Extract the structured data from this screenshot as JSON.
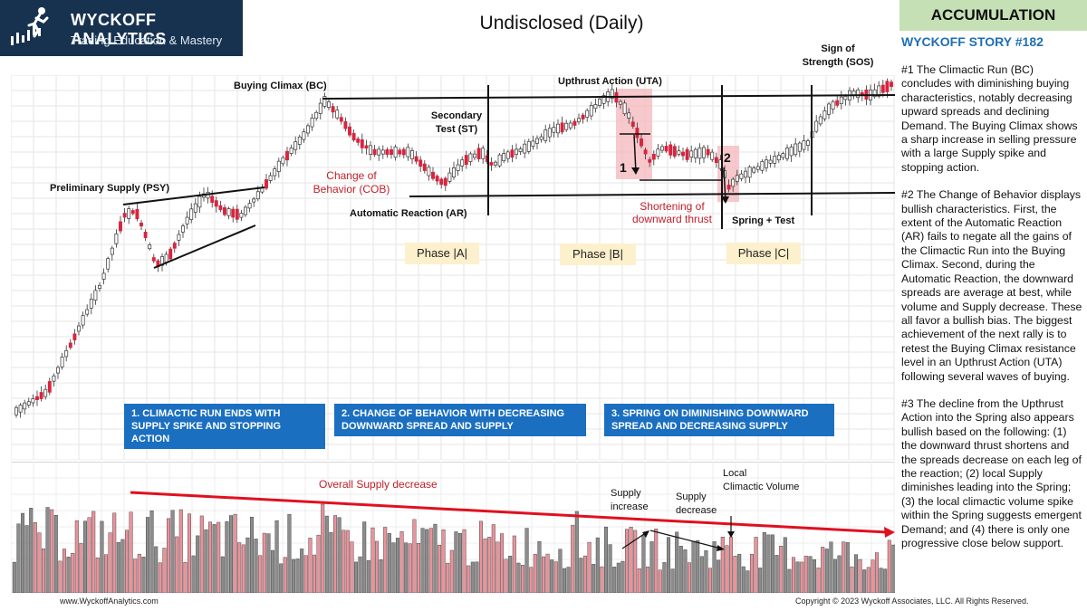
{
  "brand": {
    "name": "WYCKOFF ANALYTICS",
    "tagline": "Trading Education & Mastery"
  },
  "header": {
    "title": "Undisclosed (Daily)",
    "badge": "ACCUMULATION",
    "story": "WYCKOFF STORY #182"
  },
  "chart_data": [
    {
      "type": "candlestick",
      "title": "Undisclosed (Daily)",
      "annotations": [
        "Preliminary Supply (PSY)",
        "Buying Climax (BC)",
        "Change of Behavior (COB)",
        "Automatic Reaction (AR)",
        "Secondary Test (ST)",
        "Upthrust Action (UTA)",
        "Shortening of downward thrust",
        "Spring + Test",
        "Sign of Strength (SOS)",
        "1",
        "2"
      ],
      "phases": [
        "Phase |A|",
        "Phase |B|",
        "Phase |C|"
      ]
    },
    {
      "type": "bar",
      "title": "Volume",
      "annotations": [
        "Overall Supply decrease",
        "Supply increase",
        "Supply decrease",
        "Local Climactic Volume"
      ]
    }
  ],
  "annotations": {
    "psy": "Preliminary Supply (PSY)",
    "bc": "Buying Climax (BC)",
    "cob1": "Change of",
    "cob2": "Behavior (COB)",
    "ar": "Automatic Reaction (AR)",
    "st1": "Secondary",
    "st2": "Test (ST)",
    "uta": "Upthrust Action (UTA)",
    "sos1": "Sign of",
    "sos2": "Strength (SOS)",
    "short1": "Shortening of",
    "short2": "downward thrust",
    "spring": "Spring + Test",
    "mark1": "1",
    "mark2": "2"
  },
  "phases": {
    "a": "Phase |A|",
    "b": "Phase |B|",
    "c": "Phase |C|"
  },
  "callouts": {
    "c1": "1. CLIMACTIC RUN ENDS WITH SUPPLY SPIKE AND STOPPING ACTION",
    "c2": "2. CHANGE OF BEHAVIOR WITH DECREASING DOWNWARD SPREAD AND SUPPLY",
    "c3": "3. SPRING ON DIMINISHING DOWNWARD SPREAD AND DECREASING SUPPLY"
  },
  "volume": {
    "overall": "Overall Supply decrease",
    "inc1": "Supply",
    "inc2": "increase",
    "dec1": "Supply",
    "dec2": "decrease",
    "local1": "Local",
    "local2": "Climactic Volume"
  },
  "sidebar": {
    "p1": "#1 The Climactic Run (BC) concludes with diminishing buying characteristics, notably decreasing upward spreads and declining Demand.  The Buying Climax shows a sharp increase in selling pressure with a large Supply spike and stopping action.",
    "p2": "#2 The Change of Behavior displays bullish characteristics. First, the extent of the Automatic Reaction (AR) fails to negate all the gains of the Climactic Run into the Buying Climax. Second, during the Automatic Reaction, the downward spreads are average at best, while volume and Supply decrease. These all favor a bullish bias. The biggest achievement of the next rally is to retest the Buying Climax resistance level in an Upthrust Action (UTA) following several waves of buying.",
    "p3": "#3 The decline from the Upthrust Action into the Spring also appears bullish based on the following: (1) the downward thrust shortens and the spreads decrease on each leg of the reaction; (2) local Supply diminishes leading into the Spring; (3) the local climactic volume spike within the Spring suggests emergent Demand; and (4) there is only one progressive close below support."
  },
  "footer": {
    "site": "www.WyckoffAnalytics.com",
    "copyright": "Copyright © 2023 Wyckoff Associates, LLC. All Rights Reserved."
  },
  "colors": {
    "up": "#7f7f7f",
    "down": "#d8243f",
    "accent": "#1b6fc0",
    "highlight": "#f4b6bb"
  }
}
